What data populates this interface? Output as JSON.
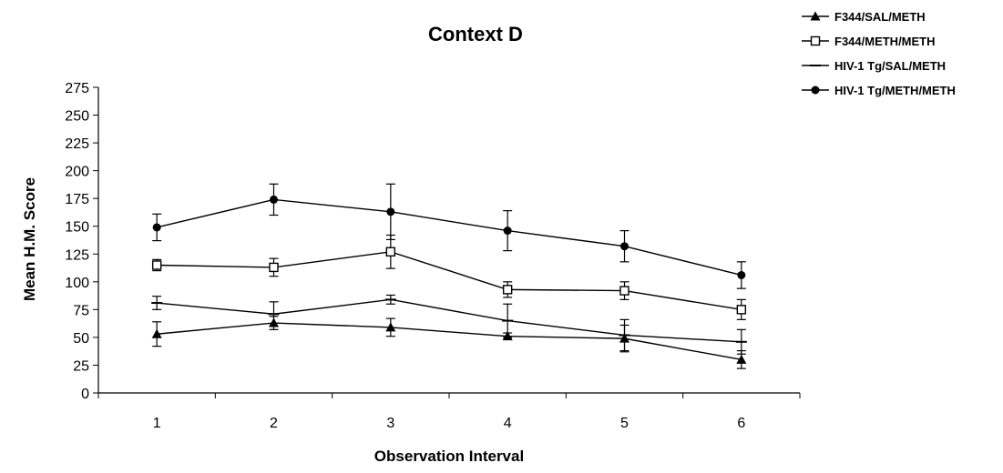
{
  "chart_data": {
    "type": "line",
    "title": "Context D",
    "xlabel": "Observation Interval",
    "ylabel": "Mean H.M. Score",
    "x": [
      1,
      2,
      3,
      4,
      5,
      6
    ],
    "x_tick_labels": [
      "1",
      "2",
      "3",
      "4",
      "5",
      "6"
    ],
    "ylim": [
      0,
      275
    ],
    "y_ticks": [
      0,
      25,
      50,
      75,
      100,
      125,
      150,
      175,
      200,
      225,
      250,
      275
    ],
    "y_tick_labels": [
      "0",
      "25",
      "50",
      "75",
      "100",
      "125",
      "150",
      "175",
      "200",
      "225",
      "250",
      "275"
    ],
    "grid": false,
    "legend_position": "top-right",
    "series": [
      {
        "name": "F344/SAL/METH",
        "marker": "filled-triangle",
        "values": [
          53,
          63,
          59,
          51,
          49,
          30
        ],
        "errors": [
          11,
          6,
          8,
          3,
          12,
          8
        ]
      },
      {
        "name": "F344/METH/METH",
        "marker": "open-square",
        "values": [
          115,
          113,
          127,
          93,
          92,
          75
        ],
        "errors": [
          5,
          8,
          15,
          7,
          8,
          9
        ]
      },
      {
        "name": "HIV-1 Tg/SAL/METH",
        "marker": "dash",
        "values": [
          81,
          71,
          84,
          65,
          52,
          46
        ],
        "errors": [
          6,
          11,
          4,
          15,
          14,
          11
        ]
      },
      {
        "name": "HIV-1 Tg/METH/METH",
        "marker": "filled-circle",
        "values": [
          149,
          174,
          163,
          146,
          132,
          106
        ],
        "errors": [
          12,
          14,
          25,
          18,
          14,
          12
        ]
      }
    ],
    "colors": {
      "line": "#000000",
      "background": "#ffffff"
    }
  }
}
